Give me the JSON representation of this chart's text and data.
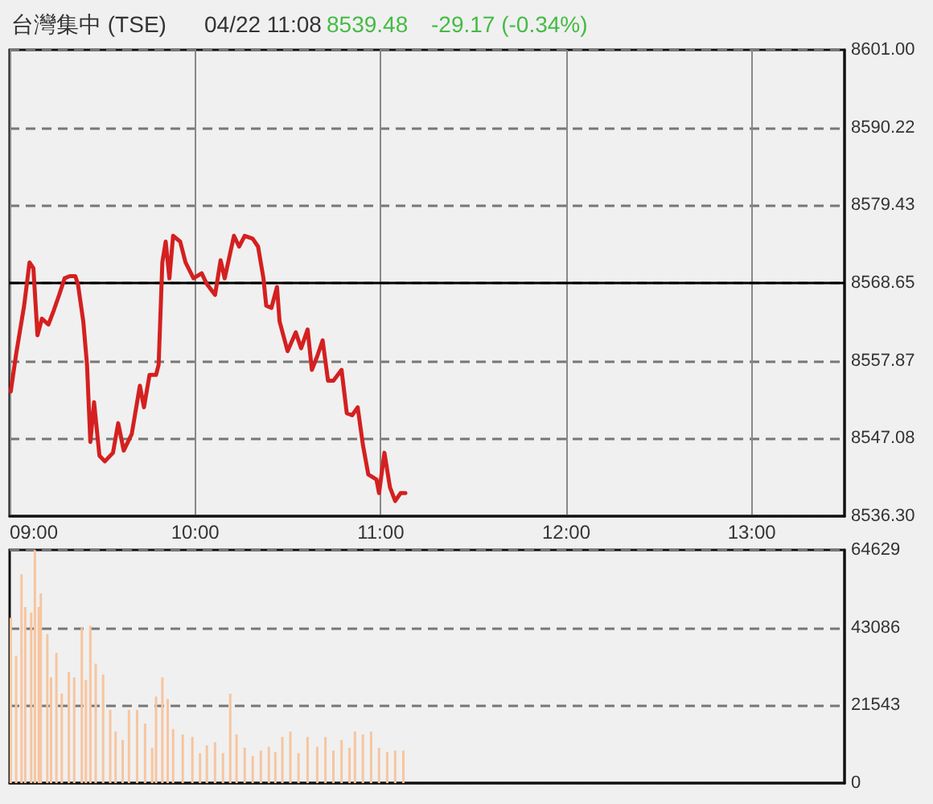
{
  "chart_data": [
    {
      "type": "line",
      "title": "台灣集中 (TSE)",
      "annotations": [
        "04/22 11:08",
        "8539.48",
        "-29.17 (-0.34%)"
      ],
      "x": [
        9.006,
        9.035,
        9.078,
        9.107,
        9.128,
        9.15,
        9.174,
        9.209,
        9.237,
        9.267,
        9.296,
        9.324,
        9.354,
        9.368,
        9.397,
        9.417,
        9.435,
        9.455,
        9.484,
        9.513,
        9.557,
        9.585,
        9.615,
        9.658,
        9.702,
        9.724,
        9.754,
        9.789,
        9.803,
        9.823,
        9.841,
        9.861,
        9.881,
        9.919,
        9.948,
        9.991,
        10.035,
        10.063,
        10.107,
        10.137,
        10.159,
        10.209,
        10.237,
        10.267,
        10.31,
        10.339,
        10.368,
        10.383,
        10.411,
        10.441,
        10.455,
        10.498,
        10.542,
        10.571,
        10.606,
        10.629,
        10.658,
        10.687,
        10.716,
        10.745,
        10.789,
        10.803,
        10.817,
        10.846,
        10.876,
        10.904,
        10.933,
        10.977,
        10.991,
        11.02,
        11.05,
        11.078,
        11.107,
        11.133
      ],
      "series": [
        {
          "color": "#d42020",
          "values": [
            8553.6,
            8558.8,
            8565.5,
            8571.5,
            8570.7,
            8561.4,
            8563.7,
            8562.9,
            8564.8,
            8567.0,
            8569.3,
            8569.6,
            8569.6,
            8568.5,
            8563.3,
            8557.3,
            8546.6,
            8552.1,
            8544.7,
            8543.9,
            8545.1,
            8549.2,
            8545.4,
            8547.7,
            8554.4,
            8551.4,
            8555.9,
            8555.9,
            8557.3,
            8571.5,
            8574.4,
            8569.3,
            8575.2,
            8574.4,
            8571.5,
            8569.3,
            8570.0,
            8568.5,
            8567.0,
            8571.8,
            8569.3,
            8575.2,
            8573.7,
            8575.2,
            8574.8,
            8573.7,
            8569.3,
            8565.5,
            8565.2,
            8568.1,
            8563.3,
            8559.2,
            8561.8,
            8559.6,
            8562.2,
            8556.6,
            8558.5,
            8560.7,
            8555.1,
            8555.1,
            8556.6,
            8553.6,
            8550.6,
            8550.3,
            8551.4,
            8546.2,
            8542.1,
            8541.4,
            8539.5,
            8545.1,
            8540.3,
            8538.4,
            8539.5,
            8539.5
          ]
        }
      ],
      "xlim": [
        9,
        13.5
      ],
      "xticks": [
        {
          "value": 9,
          "label": "09:00"
        },
        {
          "value": 10,
          "label": "10:00"
        },
        {
          "value": 11,
          "label": "11:00"
        },
        {
          "value": 12,
          "label": "12:00"
        },
        {
          "value": 13,
          "label": "13:00"
        }
      ],
      "ylim": [
        8536.3,
        8601
      ],
      "yticks": [
        {
          "value": 8536.3,
          "label": "8536.30"
        },
        8547.08,
        8557.87,
        8568.65,
        8579.43,
        8590.22,
        {
          "value": 8601,
          "label": "8601.00"
        }
      ],
      "ref_lines": [
        {
          "axis": "y",
          "value": 8568.65,
          "color": "#000000",
          "line_style": "solid"
        }
      ],
      "grid": true,
      "marker": "none",
      "line_style": "solid"
    },
    {
      "type": "bar",
      "x": [
        9.006,
        9.035,
        9.064,
        9.084,
        9.116,
        9.136,
        9.157,
        9.168,
        9.203,
        9.223,
        9.252,
        9.281,
        9.319,
        9.348,
        9.389,
        9.411,
        9.435,
        9.464,
        9.504,
        9.542,
        9.571,
        9.609,
        9.643,
        9.687,
        9.73,
        9.768,
        9.789,
        9.823,
        9.852,
        9.881,
        9.933,
        9.985,
        10.026,
        10.063,
        10.107,
        10.15,
        10.189,
        10.223,
        10.267,
        10.31,
        10.354,
        10.397,
        10.432,
        10.47,
        10.513,
        10.557,
        10.606,
        10.658,
        10.702,
        10.745,
        10.789,
        10.832,
        10.861,
        10.904,
        10.948,
        10.991,
        11.035,
        11.078,
        11.122
      ],
      "series": [
        {
          "color": "#f7c59f",
          "values": [
            45800,
            35300,
            57900,
            48800,
            47300,
            64600,
            48800,
            52600,
            41300,
            29300,
            36100,
            24800,
            30800,
            29300,
            43100,
            28600,
            43600,
            33100,
            30100,
            20300,
            14300,
            12000,
            20300,
            20300,
            16500,
            9800,
            24000,
            29300,
            23300,
            15000,
            13500,
            12800,
            8300,
            10500,
            11300,
            8300,
            24800,
            13500,
            9800,
            7500,
            9000,
            10100,
            8600,
            12800,
            14300,
            8300,
            12800,
            10100,
            12800,
            9000,
            12000,
            9800,
            14300,
            13500,
            14300,
            9800,
            8600,
            9000,
            9000
          ]
        }
      ],
      "xlim": [
        9,
        13.5
      ],
      "ylim": [
        0,
        64629
      ],
      "yticks": [
        0,
        21543,
        43086,
        64629
      ],
      "tick_labels": "y",
      "grid": "y"
    }
  ]
}
